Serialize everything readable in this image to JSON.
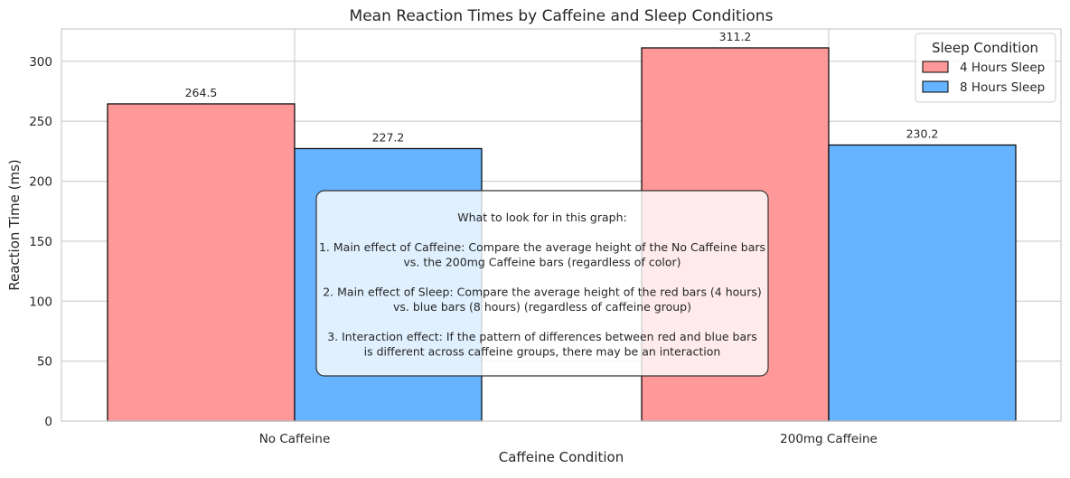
{
  "chart_data": {
    "type": "bar",
    "title": "Mean Reaction Times by Caffeine and Sleep Conditions",
    "xlabel": "Caffeine Condition",
    "ylabel": "Reaction Time (ms)",
    "categories": [
      "No Caffeine",
      "200mg Caffeine"
    ],
    "series": [
      {
        "name": "4 Hours Sleep",
        "values": [
          264.5,
          311.2
        ],
        "color": "#ff9999"
      },
      {
        "name": "8 Hours Sleep",
        "values": [
          227.2,
          230.2
        ],
        "color": "#66b3ff"
      }
    ],
    "ylim": [
      0,
      327
    ],
    "yticks": [
      0,
      50,
      100,
      150,
      200,
      250,
      300
    ],
    "grid": true,
    "legend": {
      "title": "Sleep Condition",
      "position": "top-right"
    },
    "annotation": {
      "lines": [
        "What to look for in this graph:",
        "",
        "1. Main effect of Caffeine: Compare the average height of the No Caffeine bars",
        "vs. the 200mg Caffeine bars (regardless of color)",
        "",
        "2. Main effect of Sleep: Compare the average height of the red bars (4 hours)",
        "vs. blue bars (8 hours) (regardless of caffeine group)",
        "",
        "3. Interaction effect: If the pattern of differences between red and blue bars",
        "is different across caffeine groups, there may be an interaction"
      ]
    }
  }
}
